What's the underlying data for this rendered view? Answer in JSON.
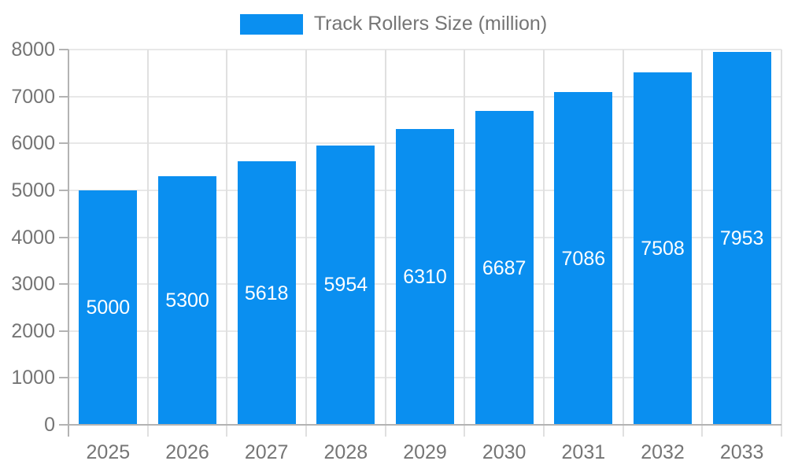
{
  "chart_data": {
    "type": "bar",
    "title": "Track Rollers Size (million)",
    "legend": {
      "label": "Track Rollers Size (million)",
      "position": "top"
    },
    "categories": [
      "2025",
      "2026",
      "2027",
      "2028",
      "2029",
      "2030",
      "2031",
      "2032",
      "2033"
    ],
    "series": [
      {
        "name": "Track Rollers Size (million)",
        "values": [
          5000,
          5300,
          5618,
          5954,
          6310,
          6687,
          7086,
          7508,
          7953
        ]
      }
    ],
    "xlabel": "",
    "ylabel": "",
    "ylim": [
      0,
      8000
    ],
    "y_ticks": [
      0,
      1000,
      2000,
      3000,
      4000,
      5000,
      6000,
      7000,
      8000
    ],
    "grid": "both",
    "bar_labels_inside": true,
    "colors": {
      "bar": "#0A8FF0",
      "bar_label": "#FFFFFF",
      "axis": "#B3B3B3",
      "gridline": "#E8E8E8",
      "below_axis_tick": "#E0E0E0",
      "text": "#757575"
    }
  }
}
